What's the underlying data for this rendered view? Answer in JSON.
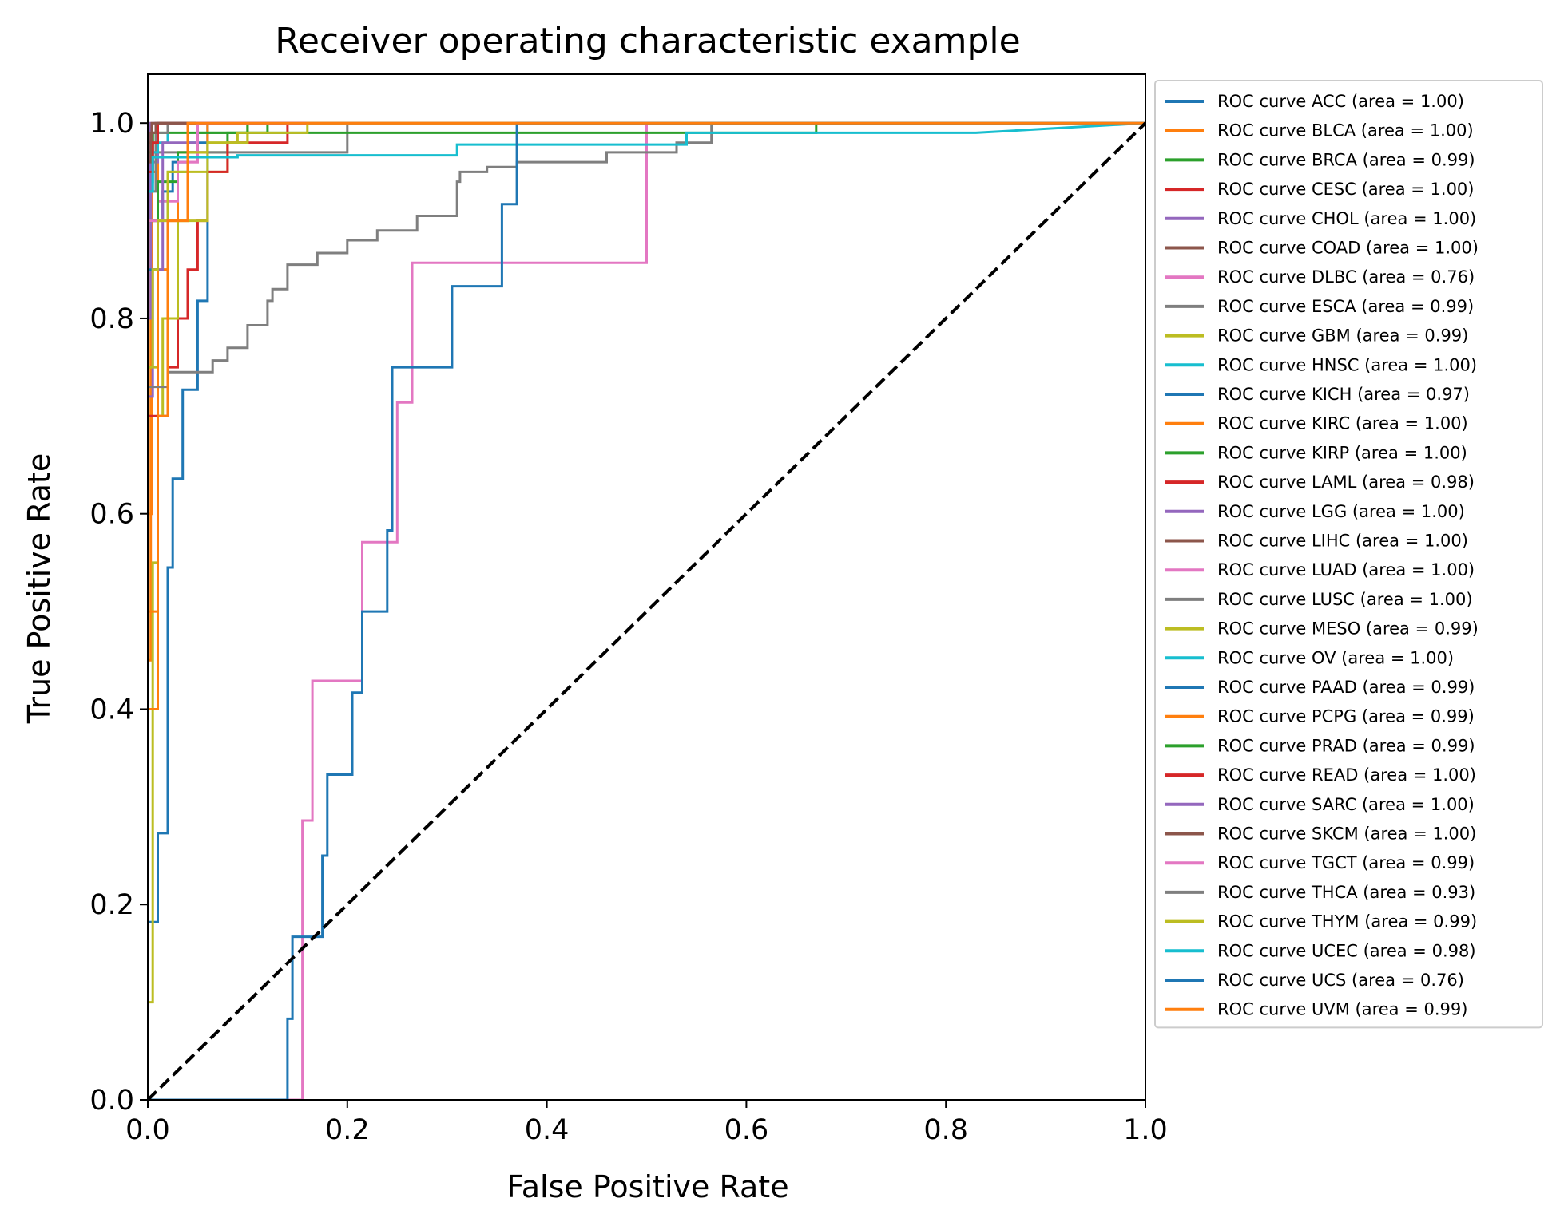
{
  "chart_data": {
    "type": "line",
    "title": "Receiver operating characteristic example",
    "xlabel": "False Positive Rate",
    "ylabel": "True Positive Rate",
    "xlim": [
      0.0,
      1.0
    ],
    "ylim": [
      0.0,
      1.05
    ],
    "xticks": [
      "0.0",
      "0.2",
      "0.4",
      "0.6",
      "0.8",
      "1.0"
    ],
    "yticks": [
      "0.0",
      "0.2",
      "0.4",
      "0.6",
      "0.8",
      "1.0"
    ],
    "grid": false,
    "legend_position": "outside-right",
    "diagonal": {
      "x": [
        0,
        1
      ],
      "y": [
        0,
        1
      ],
      "color": "#000000",
      "style": "dashed"
    },
    "series": [
      {
        "name": "ROC curve ACC (area = 1.00)",
        "color": "#1f77b4",
        "x": [
          0,
          0,
          0.01,
          0.01,
          1
        ],
        "y": [
          0,
          0.95,
          0.95,
          1.0,
          1.0
        ]
      },
      {
        "name": "ROC curve BLCA (area = 1.00)",
        "color": "#ff7f0e",
        "x": [
          0,
          0,
          0.004,
          0.004,
          0.01,
          0.01,
          1
        ],
        "y": [
          0,
          0.6,
          0.6,
          0.95,
          0.95,
          1.0,
          1.0
        ]
      },
      {
        "name": "ROC curve BRCA (area = 0.99)",
        "color": "#2ca02c",
        "x": [
          0,
          0,
          0.01,
          0.01,
          0.02,
          0.02,
          0.04,
          0.04,
          0.08,
          0.08,
          0.12,
          0.12,
          1
        ],
        "y": [
          0,
          0.85,
          0.85,
          0.92,
          0.92,
          0.95,
          0.95,
          0.97,
          0.97,
          0.99,
          0.99,
          1.0,
          1.0
        ]
      },
      {
        "name": "ROC curve CESC (area = 1.00)",
        "color": "#d62728",
        "x": [
          0,
          0,
          0.01,
          0.01,
          1
        ],
        "y": [
          0,
          0.97,
          0.97,
          1.0,
          1.0
        ]
      },
      {
        "name": "ROC curve CHOL (area = 1.00)",
        "color": "#9467bd",
        "x": [
          0,
          0,
          0.002,
          0.002,
          1
        ],
        "y": [
          0,
          0.9,
          0.9,
          1.0,
          1.0
        ]
      },
      {
        "name": "ROC curve COAD (area = 1.00)",
        "color": "#8c564b",
        "x": [
          0,
          0,
          0.005,
          0.005,
          0.01,
          0.01,
          1
        ],
        "y": [
          0,
          0.95,
          0.95,
          0.99,
          0.99,
          1.0,
          1.0
        ]
      },
      {
        "name": "ROC curve DLBC (area = 0.76)",
        "color": "#e377c2",
        "x": [
          0,
          0.155,
          0.155,
          0.165,
          0.165,
          0.215,
          0.215,
          0.25,
          0.25,
          0.265,
          0.265,
          0.5,
          0.5,
          1
        ],
        "y": [
          0,
          0,
          0.286,
          0.286,
          0.429,
          0.429,
          0.571,
          0.571,
          0.714,
          0.714,
          0.857,
          0.857,
          1.0,
          1.0
        ]
      },
      {
        "name": "ROC curve ESCA (area = 0.99)",
        "color": "#7f7f7f",
        "x": [
          0,
          0,
          0.01,
          0.01,
          0.2,
          0.2,
          1
        ],
        "y": [
          0,
          0.9,
          0.9,
          0.97,
          0.97,
          1.0,
          1.0
        ]
      },
      {
        "name": "ROC curve GBM (area = 0.99)",
        "color": "#bcbd22",
        "x": [
          0,
          0,
          0.01,
          0.01,
          0.02,
          0.02,
          0.04,
          0.04,
          0.08,
          0.08,
          0.1,
          0.1,
          1
        ],
        "y": [
          0,
          0.75,
          0.75,
          0.85,
          0.85,
          0.9,
          0.9,
          0.95,
          0.95,
          0.98,
          0.98,
          1.0,
          1.0
        ]
      },
      {
        "name": "ROC curve HNSC (area = 1.00)",
        "color": "#17becf",
        "x": [
          0,
          0,
          0.005,
          0.005,
          0.02,
          0.02,
          1
        ],
        "y": [
          0,
          0.94,
          0.94,
          0.98,
          0.98,
          1.0,
          1.0
        ]
      },
      {
        "name": "ROC curve KICH (area = 0.97)",
        "color": "#1f77b4",
        "x": [
          0,
          0,
          0.01,
          0.01,
          0.02,
          0.02,
          0.025,
          0.025,
          0.035,
          0.035,
          0.05,
          0.05,
          0.06,
          0.06,
          1
        ],
        "y": [
          0,
          0.182,
          0.182,
          0.273,
          0.273,
          0.545,
          0.545,
          0.636,
          0.636,
          0.727,
          0.727,
          0.818,
          0.818,
          1.0,
          1.0
        ]
      },
      {
        "name": "ROC curve KIRC (area = 1.00)",
        "color": "#ff7f0e",
        "x": [
          0,
          0,
          0.003,
          0.003,
          0.01,
          0.01,
          1
        ],
        "y": [
          0,
          0.45,
          0.45,
          0.9,
          0.9,
          1.0,
          1.0
        ]
      },
      {
        "name": "ROC curve KIRP (area = 1.00)",
        "color": "#2ca02c",
        "x": [
          0,
          0,
          0.005,
          0.005,
          0.67,
          0.67,
          1
        ],
        "y": [
          0,
          0.97,
          0.97,
          0.99,
          0.99,
          1.0,
          1.0
        ]
      },
      {
        "name": "ROC curve LAML (area = 0.98)",
        "color": "#d62728",
        "x": [
          0,
          0,
          0.02,
          0.02,
          0.03,
          0.03,
          0.04,
          0.04,
          0.05,
          0.05,
          0.06,
          0.06,
          0.08,
          0.08,
          0.14,
          0.14,
          1
        ],
        "y": [
          0,
          0.7,
          0.7,
          0.75,
          0.75,
          0.8,
          0.8,
          0.85,
          0.85,
          0.9,
          0.9,
          0.95,
          0.95,
          0.98,
          0.98,
          1.0,
          1.0
        ]
      },
      {
        "name": "ROC curve LGG (area = 1.00)",
        "color": "#9467bd",
        "x": [
          0,
          0,
          0.003,
          0.003,
          0.01,
          0.01,
          1
        ],
        "y": [
          0,
          0.8,
          0.8,
          0.96,
          0.96,
          1.0,
          1.0
        ]
      },
      {
        "name": "ROC curve LIHC (area = 1.00)",
        "color": "#8c564b",
        "x": [
          0,
          0,
          0.004,
          0.004,
          1
        ],
        "y": [
          0,
          0.98,
          0.98,
          1.0,
          1.0
        ]
      },
      {
        "name": "ROC curve LUAD (area = 1.00)",
        "color": "#e377c2",
        "x": [
          0,
          0,
          0.01,
          0.01,
          0.03,
          0.03,
          0.05,
          0.05,
          1
        ],
        "y": [
          0,
          0.85,
          0.85,
          0.92,
          0.92,
          0.96,
          0.96,
          1.0,
          1.0
        ]
      },
      {
        "name": "ROC curve LUSC (area = 1.00)",
        "color": "#7f7f7f",
        "x": [
          0,
          0,
          0.008,
          0.008,
          0.02,
          0.02,
          1
        ],
        "y": [
          0,
          0.93,
          0.93,
          0.99,
          0.99,
          1.0,
          1.0
        ]
      },
      {
        "name": "ROC curve MESO (area = 0.99)",
        "color": "#bcbd22",
        "x": [
          0,
          0,
          0.005,
          0.005,
          0.01,
          0.01,
          0.015,
          0.015,
          0.03,
          0.03,
          0.06,
          0.06,
          0.1,
          0.1,
          1
        ],
        "y": [
          0,
          0.1,
          0.1,
          0.55,
          0.55,
          0.7,
          0.7,
          0.8,
          0.8,
          0.9,
          0.9,
          0.98,
          0.98,
          1.0,
          1.0
        ]
      },
      {
        "name": "ROC curve OV (area = 1.00)",
        "color": "#17becf",
        "x": [
          0,
          0,
          0.005,
          0.005,
          0.01,
          0.01,
          1
        ],
        "y": [
          0,
          0.93,
          0.93,
          0.97,
          0.97,
          1.0,
          1.0
        ]
      },
      {
        "name": "ROC curve PAAD (area = 0.99)",
        "color": "#1f77b4",
        "x": [
          0,
          0,
          0.01,
          0.01,
          0.015,
          0.015,
          0.025,
          0.025,
          0.04,
          0.04,
          0.06,
          0.06,
          1
        ],
        "y": [
          0,
          0.85,
          0.85,
          0.9,
          0.9,
          0.93,
          0.93,
          0.96,
          0.96,
          0.98,
          0.98,
          1.0,
          1.0
        ]
      },
      {
        "name": "ROC curve PCPG (area = 0.99)",
        "color": "#ff7f0e",
        "x": [
          0,
          0,
          0.01,
          0.01,
          0.02,
          0.02,
          0.03,
          0.03,
          0.06,
          0.06,
          1
        ],
        "y": [
          0,
          0.5,
          0.5,
          0.85,
          0.85,
          0.9,
          0.9,
          0.97,
          0.97,
          1.0,
          1.0
        ]
      },
      {
        "name": "ROC curve PRAD (area = 0.99)",
        "color": "#2ca02c",
        "x": [
          0,
          0,
          0.01,
          0.01,
          0.03,
          0.03,
          0.05,
          0.05,
          0.1,
          0.1,
          1
        ],
        "y": [
          0,
          0.9,
          0.9,
          0.94,
          0.94,
          0.97,
          0.97,
          0.99,
          0.99,
          1.0,
          1.0
        ]
      },
      {
        "name": "ROC curve READ (area = 1.00)",
        "color": "#d62728",
        "x": [
          0,
          0,
          0.005,
          0.005,
          0.01,
          0.01,
          1
        ],
        "y": [
          0,
          0.95,
          0.95,
          0.98,
          0.98,
          1.0,
          1.0
        ]
      },
      {
        "name": "ROC curve SARC (area = 1.00)",
        "color": "#9467bd",
        "x": [
          0,
          0,
          0.005,
          0.005,
          0.015,
          0.015,
          0.05,
          0.05,
          1
        ],
        "y": [
          0,
          0.72,
          0.72,
          0.85,
          0.85,
          0.98,
          0.98,
          1.0,
          1.0
        ]
      },
      {
        "name": "ROC curve SKCM (area = 1.00)",
        "color": "#8c564b",
        "x": [
          0,
          0,
          0.003,
          0.003,
          0.008,
          0.008,
          1
        ],
        "y": [
          0,
          0.96,
          0.96,
          0.99,
          0.99,
          1.0,
          1.0
        ]
      },
      {
        "name": "ROC curve TGCT (area = 0.99)",
        "color": "#e377c2",
        "x": [
          0,
          0,
          0.02,
          0.02,
          0.03,
          0.03,
          0.05,
          0.05,
          1
        ],
        "y": [
          0,
          0.9,
          0.9,
          0.92,
          0.92,
          0.96,
          0.96,
          1.0,
          1.0
        ]
      },
      {
        "name": "ROC curve THCA (area = 0.93)",
        "color": "#7f7f7f",
        "x": [
          0,
          0,
          0.02,
          0.02,
          0.065,
          0.065,
          0.08,
          0.08,
          0.1,
          0.1,
          0.12,
          0.12,
          0.125,
          0.125,
          0.14,
          0.14,
          0.17,
          0.17,
          0.2,
          0.2,
          0.23,
          0.23,
          0.27,
          0.27,
          0.31,
          0.31,
          0.313,
          0.313,
          0.34,
          0.34,
          0.37,
          0.37,
          0.46,
          0.46,
          0.53,
          0.53,
          0.565,
          0.565,
          1
        ],
        "y": [
          0,
          0.73,
          0.73,
          0.745,
          0.745,
          0.757,
          0.757,
          0.77,
          0.77,
          0.793,
          0.793,
          0.818,
          0.818,
          0.83,
          0.83,
          0.855,
          0.855,
          0.867,
          0.867,
          0.88,
          0.88,
          0.89,
          0.89,
          0.905,
          0.905,
          0.94,
          0.94,
          0.95,
          0.95,
          0.955,
          0.955,
          0.96,
          0.96,
          0.97,
          0.97,
          0.98,
          0.98,
          1.0,
          1.0
        ]
      },
      {
        "name": "ROC curve THYM (area = 0.99)",
        "color": "#bcbd22",
        "x": [
          0,
          0,
          0.005,
          0.005,
          0.01,
          0.01,
          0.02,
          0.02,
          0.04,
          0.04,
          0.06,
          0.06,
          0.09,
          0.09,
          0.16,
          0.16,
          1
        ],
        "y": [
          0,
          0.75,
          0.75,
          0.85,
          0.85,
          0.9,
          0.9,
          0.95,
          0.95,
          0.97,
          0.97,
          0.98,
          0.98,
          0.99,
          0.99,
          1.0,
          1.0
        ]
      },
      {
        "name": "ROC curve UCEC (area = 0.98)",
        "color": "#17becf",
        "x": [
          0,
          0,
          0.005,
          0.005,
          0.09,
          0.09,
          0.31,
          0.31,
          0.54,
          0.54,
          0.83,
          1
        ],
        "y": [
          0,
          0.93,
          0.93,
          0.965,
          0.965,
          0.967,
          0.967,
          0.978,
          0.978,
          0.99,
          0.99,
          1.0
        ]
      },
      {
        "name": "ROC curve UCS (area = 0.76)",
        "color": "#1f77b4",
        "x": [
          0,
          0.14,
          0.14,
          0.145,
          0.145,
          0.175,
          0.175,
          0.18,
          0.18,
          0.205,
          0.205,
          0.215,
          0.215,
          0.24,
          0.24,
          0.245,
          0.245,
          0.305,
          0.305,
          0.355,
          0.355,
          0.37,
          0.37,
          1
        ],
        "y": [
          0,
          0,
          0.083,
          0.083,
          0.167,
          0.167,
          0.25,
          0.25,
          0.333,
          0.333,
          0.417,
          0.417,
          0.5,
          0.5,
          0.583,
          0.583,
          0.75,
          0.75,
          0.833,
          0.833,
          0.917,
          0.917,
          1.0,
          1.0
        ]
      },
      {
        "name": "ROC curve UVM (area = 0.99)",
        "color": "#ff7f0e",
        "x": [
          0,
          0,
          0.01,
          0.01,
          0.02,
          0.02,
          0.04,
          0.04,
          1
        ],
        "y": [
          0,
          0.4,
          0.4,
          0.7,
          0.7,
          0.9,
          0.9,
          1.0,
          1.0
        ]
      }
    ]
  }
}
